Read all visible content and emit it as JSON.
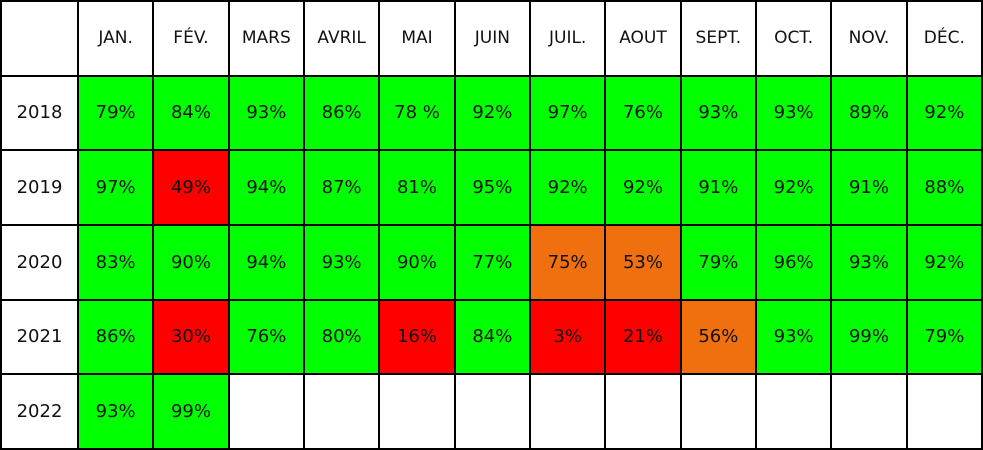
{
  "table": {
    "columns": [
      "JAN.",
      "FÉV.",
      "MARS",
      "AVRIL",
      "MAI",
      "JUIN",
      "JUIL.",
      "AOUT",
      "SEPT.",
      "OCT.",
      "NOV.",
      "DÉC."
    ],
    "rows": [
      {
        "year": "2018",
        "cells": [
          "79%",
          "84%",
          "93%",
          "86%",
          "78 %",
          "92%",
          "97%",
          "76%",
          "93%",
          "93%",
          "89%",
          "92%"
        ],
        "colors": [
          "#00ff00",
          "#00ff00",
          "#00ff00",
          "#00ff00",
          "#00ff00",
          "#00ff00",
          "#00ff00",
          "#00ff00",
          "#00ff00",
          "#00ff00",
          "#00ff00",
          "#00ff00"
        ]
      },
      {
        "year": "2019",
        "cells": [
          "97%",
          "49%",
          "94%",
          "87%",
          "81%",
          "95%",
          "92%",
          "92%",
          "91%",
          "92%",
          "91%",
          "88%"
        ],
        "colors": [
          "#00ff00",
          "#ff0000",
          "#00ff00",
          "#00ff00",
          "#00ff00",
          "#00ff00",
          "#00ff00",
          "#00ff00",
          "#00ff00",
          "#00ff00",
          "#00ff00",
          "#00ff00"
        ]
      },
      {
        "year": "2020",
        "cells": [
          "83%",
          "90%",
          "94%",
          "93%",
          "90%",
          "77%",
          "75%",
          "53%",
          "79%",
          "96%",
          "93%",
          "92%"
        ],
        "colors": [
          "#00ff00",
          "#00ff00",
          "#00ff00",
          "#00ff00",
          "#00ff00",
          "#00ff00",
          "#f07010",
          "#f07010",
          "#00ff00",
          "#00ff00",
          "#00ff00",
          "#00ff00"
        ]
      },
      {
        "year": "2021",
        "cells": [
          "86%",
          "30%",
          "76%",
          "80%",
          "16%",
          "84%",
          "3%",
          "21%",
          "56%",
          "93%",
          "99%",
          "79%"
        ],
        "colors": [
          "#00ff00",
          "#ff0000",
          "#00ff00",
          "#00ff00",
          "#ff0000",
          "#00ff00",
          "#ff0000",
          "#ff0000",
          "#f07010",
          "#00ff00",
          "#00ff00",
          "#00ff00"
        ]
      },
      {
        "year": "2022",
        "cells": [
          "93%",
          "99%"
        ],
        "colors": [
          "#00ff00",
          "#00ff00"
        ]
      }
    ]
  }
}
